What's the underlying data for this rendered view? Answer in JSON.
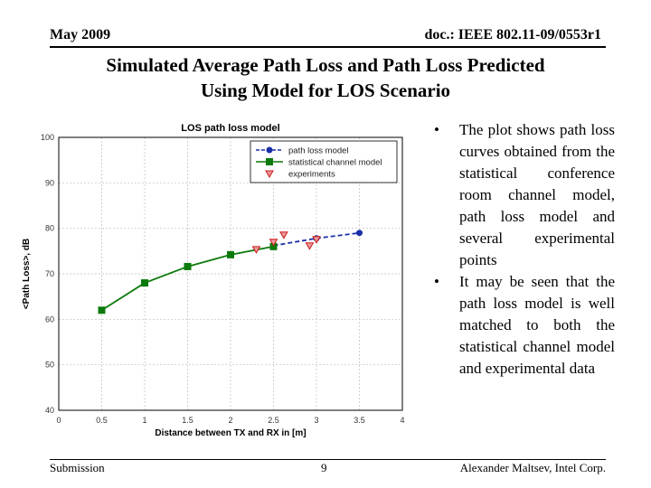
{
  "header": {
    "date": "May 2009",
    "doc_id": "doc.: IEEE 802.11-09/0553r1"
  },
  "slide": {
    "title_line1": "Simulated Average Path Loss and Path Loss Predicted",
    "title_line2": "Using Model for LOS Scenario"
  },
  "bullets": [
    "The plot shows path loss curves obtained from the statistical conference room channel model, path loss model and several experimental points",
    "It may be seen that the path loss model is well matched to both the statistical channel model and experimental data"
  ],
  "footer": {
    "left": "Submission",
    "page": "9",
    "author": "Alexander Maltsev, Intel Corp."
  },
  "colors": {
    "path_loss_model": "#1a2fa8",
    "statistical_model": "#0b7a0b",
    "experiments": "#cc1a1a"
  },
  "chart_data": {
    "type": "line",
    "title": "LOS path loss model",
    "xlabel": "Distance between TX and RX in [m]",
    "ylabel": "<Path Loss>, dB",
    "xlim": [
      0,
      4
    ],
    "ylim": [
      40,
      100
    ],
    "xticks": [
      0,
      0.5,
      1,
      1.5,
      2,
      2.5,
      3,
      3.5,
      4
    ],
    "yticks": [
      40,
      50,
      60,
      70,
      80,
      90,
      100
    ],
    "xtick_labels": [
      "0",
      "0.5",
      "1",
      "1.5",
      "2",
      "2.5",
      "3",
      "3.5",
      "4"
    ],
    "ytick_labels": [
      "40",
      "50",
      "60",
      "70",
      "80",
      "90",
      "100"
    ],
    "grid": true,
    "legend_position": "top-right",
    "series": [
      {
        "name": "path loss model",
        "style": "dashed-line-circle-markers",
        "x": [
          2.5,
          3.0,
          3.5
        ],
        "y": [
          76.2,
          77.8,
          79.0
        ]
      },
      {
        "name": "statistical channel model",
        "style": "solid-line-square-markers",
        "x": [
          0.5,
          1.0,
          1.5,
          2.0,
          2.5
        ],
        "y": [
          62.0,
          68.0,
          71.6,
          74.2,
          76.0
        ]
      },
      {
        "name": "experiments",
        "style": "triangle-down-markers",
        "x": [
          2.3,
          2.5,
          2.62,
          2.92,
          3.0
        ],
        "y": [
          75.4,
          77.0,
          78.6,
          76.2,
          77.6
        ]
      }
    ]
  }
}
